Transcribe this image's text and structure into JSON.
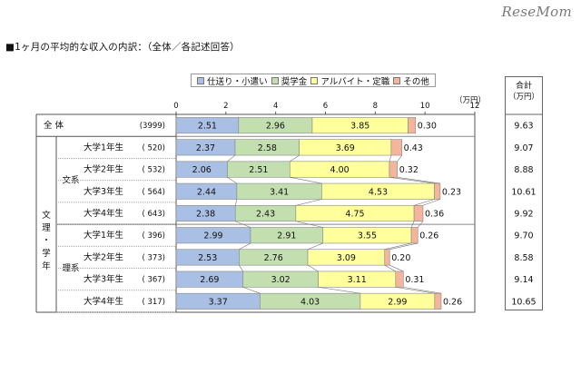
{
  "header": {
    "title": "■1ヶ月の平均的な収入の内訳：（全体／各記述回答）",
    "logo": "ReseMom"
  },
  "totals": {
    "header_line1": "合計",
    "header_line2": "（万円）"
  },
  "groups": {
    "top": "文理・学年",
    "bunkei": "文系",
    "rikei": "理系"
  },
  "colors": {
    "仕送り・小遣い": "#a9bfe3",
    "奨学金": "#c3dfb0",
    "アルバイト・定職": "#ffff9c",
    "その他": "#f5b59c"
  },
  "chart_data": {
    "type": "bar",
    "orientation": "horizontal",
    "stacked": true,
    "x_unit": "（万円）",
    "xlim": [
      0,
      12
    ],
    "x_ticks": [
      "0",
      "2",
      "4",
      "6",
      "8",
      "10",
      "12"
    ],
    "series_names": [
      "仕送り・小遣い",
      "奨学金",
      "アルバイト・定職",
      "その他"
    ],
    "rows": [
      {
        "label": "全 体",
        "n": "(3999)",
        "values": [
          2.51,
          2.96,
          3.85,
          0.3
        ],
        "labels": [
          "2.51",
          "2.96",
          "3.85",
          "0.30"
        ],
        "total": "9.63"
      },
      {
        "label": "大学1年生",
        "n": "( 520)",
        "values": [
          2.37,
          2.58,
          3.69,
          0.43
        ],
        "labels": [
          "2.37",
          "2.58",
          "3.69",
          "0.43"
        ],
        "total": "9.07"
      },
      {
        "label": "大学2年生",
        "n": "( 532)",
        "values": [
          2.06,
          2.51,
          4.0,
          0.32
        ],
        "labels": [
          "2.06",
          "2.51",
          "4.00",
          "0.32"
        ],
        "total": "8.88"
      },
      {
        "label": "大学3年生",
        "n": "( 564)",
        "values": [
          2.44,
          3.41,
          4.53,
          0.23
        ],
        "labels": [
          "2.44",
          "3.41",
          "4.53",
          "0.23"
        ],
        "total": "10.61"
      },
      {
        "label": "大学4年生",
        "n": "( 643)",
        "values": [
          2.38,
          2.43,
          4.75,
          0.36
        ],
        "labels": [
          "2.38",
          "2.43",
          "4.75",
          "0.36"
        ],
        "total": "9.92"
      },
      {
        "label": "大学1年生",
        "n": "( 396)",
        "values": [
          2.99,
          2.91,
          3.55,
          0.26
        ],
        "labels": [
          "2.99",
          "2.91",
          "3.55",
          "0.26"
        ],
        "total": "9.70"
      },
      {
        "label": "大学2年生",
        "n": "( 373)",
        "values": [
          2.53,
          2.76,
          3.09,
          0.2
        ],
        "labels": [
          "2.53",
          "2.76",
          "3.09",
          "0.20"
        ],
        "total": "8.58"
      },
      {
        "label": "大学3年生",
        "n": "( 367)",
        "values": [
          2.69,
          3.02,
          3.11,
          0.31
        ],
        "labels": [
          "2.69",
          "3.02",
          "3.11",
          "0.31"
        ],
        "total": "9.14"
      },
      {
        "label": "大学4年生",
        "n": "( 317)",
        "values": [
          3.37,
          4.03,
          2.99,
          0.26
        ],
        "labels": [
          "3.37",
          "4.03",
          "2.99",
          "0.26"
        ],
        "total": "10.65"
      }
    ]
  }
}
